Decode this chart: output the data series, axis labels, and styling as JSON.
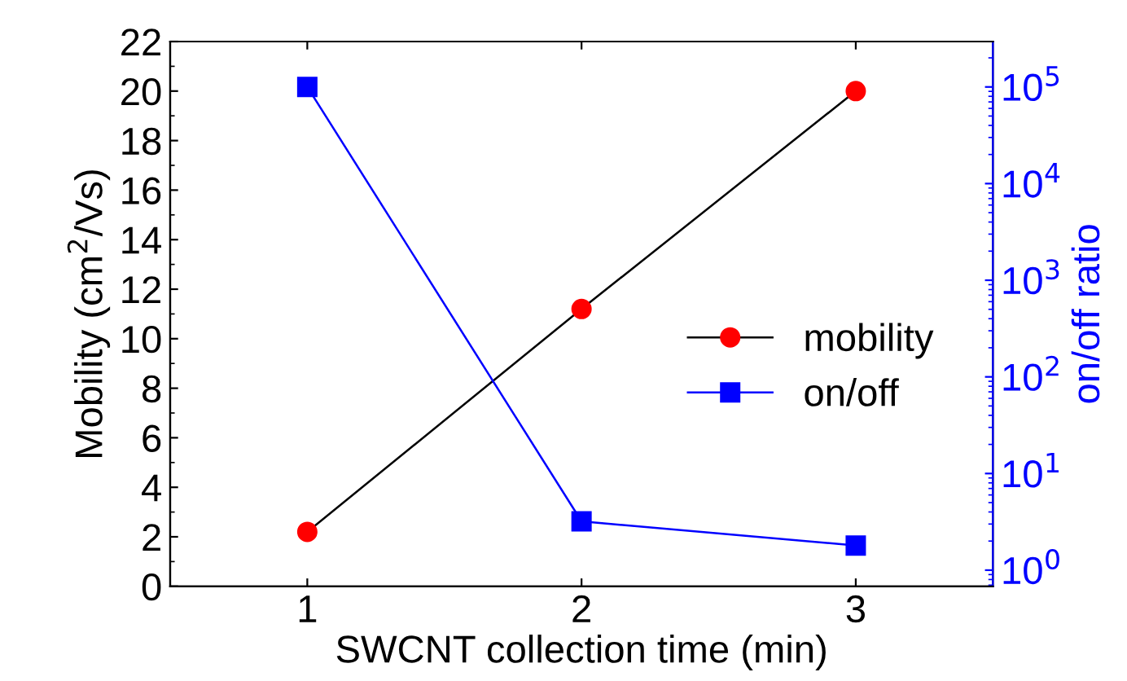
{
  "chart_data": {
    "type": "line",
    "xlabel": "SWCNT collection time (min)",
    "ylabel": "Mobility (cm$^{2}$/Vs)",
    "y2label": "on/off ratio",
    "x": [
      1,
      2,
      3
    ],
    "xlim": [
      0.5,
      3.5
    ],
    "xticks": [
      1,
      2,
      3
    ],
    "ylim": [
      0,
      22
    ],
    "yticks": [
      0,
      2,
      4,
      6,
      8,
      10,
      12,
      14,
      16,
      18,
      20,
      22
    ],
    "y2lim": [
      0.68,
      295000
    ],
    "y2ticks": [
      {
        "value": 1,
        "label": "10$^{0}$"
      },
      {
        "value": 10,
        "label": "10$^{1}$"
      },
      {
        "value": 100,
        "label": "10$^{2}$"
      },
      {
        "value": 1000,
        "label": "10$^{3}$"
      },
      {
        "value": 10000,
        "label": "10$^{4}$"
      },
      {
        "value": 100000,
        "label": "10$^{5}$"
      }
    ],
    "log": "y2",
    "grid": false,
    "legend": "right",
    "series": [
      {
        "name": "mobility",
        "color": "#ff0000",
        "values": [
          2.2,
          11.2,
          20.0
        ],
        "marker": "circle"
      },
      {
        "name": "on/off",
        "color": "#0000ff",
        "values": [
          100000,
          3.2,
          1.8
        ],
        "marker": "square",
        "axis": "y2"
      }
    ]
  }
}
